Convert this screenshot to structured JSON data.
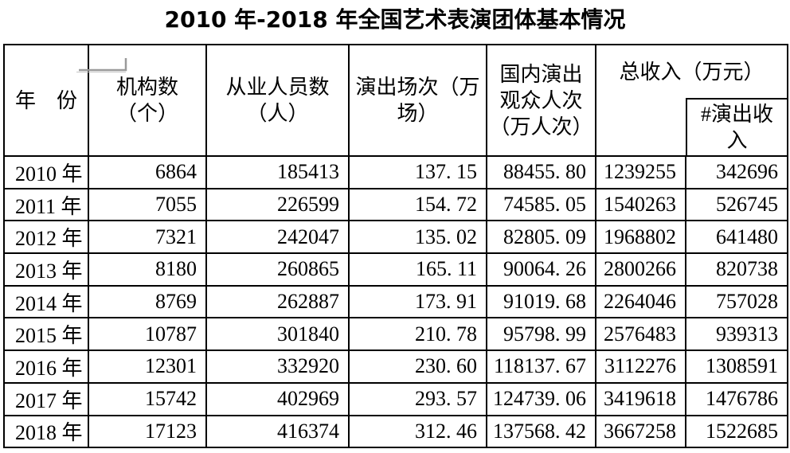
{
  "title": "2010 年-2018 年全国艺术表演团体基本情况",
  "table": {
    "headers": {
      "year": "年　份",
      "institutions": "机构数\n（个）",
      "employees": "从业人员数\n（人）",
      "performances": "演出场次（万\n场）",
      "audience": "国内演出\n观众人次\n（万人次）",
      "total_income": "总收入（万元）",
      "performance_income": "#演出收\n入"
    },
    "rows": [
      {
        "year": "2010 年",
        "cells": [
          "6864",
          "185413",
          "137. 15",
          "88455. 80",
          "1239255",
          "342696"
        ]
      },
      {
        "year": "2011 年",
        "cells": [
          "7055",
          "226599",
          "154. 72",
          "74585. 05",
          "1540263",
          "526745"
        ]
      },
      {
        "year": "2012 年",
        "cells": [
          "7321",
          "242047",
          "135. 02",
          "82805. 09",
          "1968802",
          "641480"
        ]
      },
      {
        "year": "2013 年",
        "cells": [
          "8180",
          "260865",
          "165. 11",
          "90064. 26",
          "2800266",
          "820738"
        ]
      },
      {
        "year": "2014 年",
        "cells": [
          "8769",
          "262887",
          "173. 91",
          "91019. 68",
          "2264046",
          "757028"
        ]
      },
      {
        "year": "2015 年",
        "cells": [
          "10787",
          "301840",
          "210. 78",
          "95798. 99",
          "2576483",
          "939313"
        ]
      },
      {
        "year": "2016 年",
        "cells": [
          "12301",
          "332920",
          "230. 60",
          "118137. 67",
          "3112276",
          "1308591"
        ]
      },
      {
        "year": "2017 年",
        "cells": [
          "15742",
          "402969",
          "293. 57",
          "124739. 06",
          "3419618",
          "1476786"
        ]
      },
      {
        "year": "2018 年",
        "cells": [
          "17123",
          "416374",
          "312. 46",
          "137568. 42",
          "3667258",
          "1522685"
        ]
      }
    ]
  },
  "colors": {
    "text": "#000000",
    "border": "#000000",
    "background": "#ffffff",
    "artifact_mark": "#9a9a9a"
  }
}
